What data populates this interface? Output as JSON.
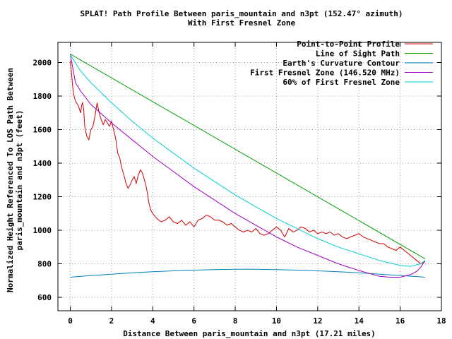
{
  "chart_data": {
    "type": "line",
    "title": "SPLAT! Path Profile Between paris_mountain and n3pt (152.47° azimuth)",
    "subtitle": "With First Fresnel Zone",
    "xlabel": "Distance Between paris_mountain and n3pt (17.21 miles)",
    "ylabel_line1": "Normalized Height Referenced To LOS Path Between",
    "ylabel_line2": "paris_mountain and n3pt (feet)",
    "xlim": [
      -0.6,
      18
    ],
    "ylim": [
      520,
      2120
    ],
    "xticks": [
      0,
      2,
      4,
      6,
      8,
      10,
      12,
      14,
      16,
      18
    ],
    "yticks": [
      600,
      800,
      1000,
      1200,
      1400,
      1600,
      1800,
      2000
    ],
    "grid": true,
    "legend_position": "top-right",
    "series": [
      {
        "name": "Point-to-Point Profile",
        "color": "#d00000",
        "x": [
          0,
          0.05,
          0.1,
          0.15,
          0.2,
          0.25,
          0.3,
          0.4,
          0.5,
          0.55,
          0.6,
          0.65,
          0.7,
          0.8,
          0.9,
          1.0,
          1.1,
          1.2,
          1.3,
          1.4,
          1.5,
          1.6,
          1.7,
          1.8,
          1.9,
          2.0,
          2.1,
          2.2,
          2.3,
          2.4,
          2.5,
          2.6,
          2.7,
          2.8,
          2.9,
          3.0,
          3.1,
          3.2,
          3.3,
          3.4,
          3.5,
          3.6,
          3.7,
          3.8,
          3.9,
          4.0,
          4.2,
          4.4,
          4.6,
          4.8,
          5.0,
          5.2,
          5.4,
          5.6,
          5.8,
          6.0,
          6.2,
          6.4,
          6.6,
          6.8,
          7.0,
          7.2,
          7.4,
          7.6,
          7.8,
          8.0,
          8.2,
          8.4,
          8.6,
          8.8,
          9.0,
          9.2,
          9.4,
          9.6,
          9.8,
          10.0,
          10.2,
          10.4,
          10.6,
          10.8,
          11.0,
          11.2,
          11.4,
          11.6,
          11.8,
          12.0,
          12.2,
          12.4,
          12.6,
          12.8,
          13.0,
          13.2,
          13.4,
          13.6,
          13.8,
          14.0,
          14.2,
          14.4,
          14.6,
          14.8,
          15.0,
          15.2,
          15.4,
          15.6,
          15.8,
          16.0,
          16.2,
          16.4,
          16.6,
          16.8,
          17.0,
          17.21
        ],
        "y": [
          2010,
          1950,
          1880,
          1820,
          1790,
          1770,
          1760,
          1740,
          1700,
          1745,
          1760,
          1720,
          1620,
          1560,
          1540,
          1600,
          1620,
          1680,
          1760,
          1700,
          1660,
          1630,
          1660,
          1640,
          1620,
          1650,
          1600,
          1550,
          1460,
          1430,
          1370,
          1330,
          1280,
          1250,
          1270,
          1300,
          1320,
          1280,
          1330,
          1360,
          1340,
          1300,
          1250,
          1170,
          1120,
          1100,
          1070,
          1050,
          1060,
          1080,
          1050,
          1040,
          1060,
          1030,
          1050,
          1020,
          1060,
          1070,
          1090,
          1080,
          1060,
          1060,
          1050,
          1030,
          1040,
          1020,
          1000,
          990,
          1000,
          990,
          1010,
          980,
          970,
          980,
          1000,
          1020,
          1000,
          960,
          1010,
          990,
          1000,
          1020,
          1010,
          990,
          1000,
          980,
          990,
          980,
          990,
          970,
          980,
          960,
          950,
          960,
          970,
          980,
          960,
          950,
          940,
          930,
          920,
          920,
          900,
          890,
          880,
          900,
          880,
          860,
          840,
          820,
          800,
          812
        ]
      },
      {
        "name": "Line of Sight Path",
        "color": "#00a000",
        "x": [
          0,
          17.21
        ],
        "y": [
          2050,
          830
        ]
      },
      {
        "name": "Earth's Curvature Contour",
        "color": "#0080c0",
        "x": [
          0,
          1,
          2,
          3,
          4,
          5,
          6,
          7,
          8,
          8.6,
          9,
          10,
          11,
          12,
          13,
          14,
          15,
          16,
          17,
          17.21
        ],
        "y": [
          720,
          730,
          738,
          746,
          753,
          758,
          762,
          765,
          767,
          768,
          767,
          765,
          762,
          758,
          753,
          746,
          738,
          730,
          722,
          720
        ]
      },
      {
        "name": "First Fresnel Zone (146.520 MHz)",
        "color": "#a000c0",
        "x": [
          0,
          0.25,
          0.5,
          1,
          2,
          3,
          4,
          5,
          6,
          7,
          8,
          9,
          10,
          11,
          12,
          13,
          14,
          15,
          15.5,
          16,
          16.5,
          16.8,
          17.0,
          17.21
        ],
        "y": [
          2050,
          1880,
          1830,
          1750,
          1640,
          1540,
          1440,
          1350,
          1260,
          1180,
          1100,
          1030,
          960,
          900,
          850,
          800,
          760,
          725,
          720,
          720,
          735,
          755,
          780,
          820
        ]
      },
      {
        "name": "60% of First Fresnel Zone",
        "color": "#00d0d0",
        "x": [
          0,
          0.5,
          1,
          2,
          3,
          4,
          5,
          6,
          7,
          8,
          9,
          10,
          11,
          12,
          13,
          14,
          15,
          16,
          16.5,
          17.0,
          17.21
        ],
        "y": [
          2045,
          1950,
          1880,
          1760,
          1650,
          1550,
          1460,
          1370,
          1290,
          1210,
          1140,
          1070,
          1010,
          950,
          900,
          860,
          820,
          790,
          785,
          800,
          820
        ]
      }
    ]
  }
}
